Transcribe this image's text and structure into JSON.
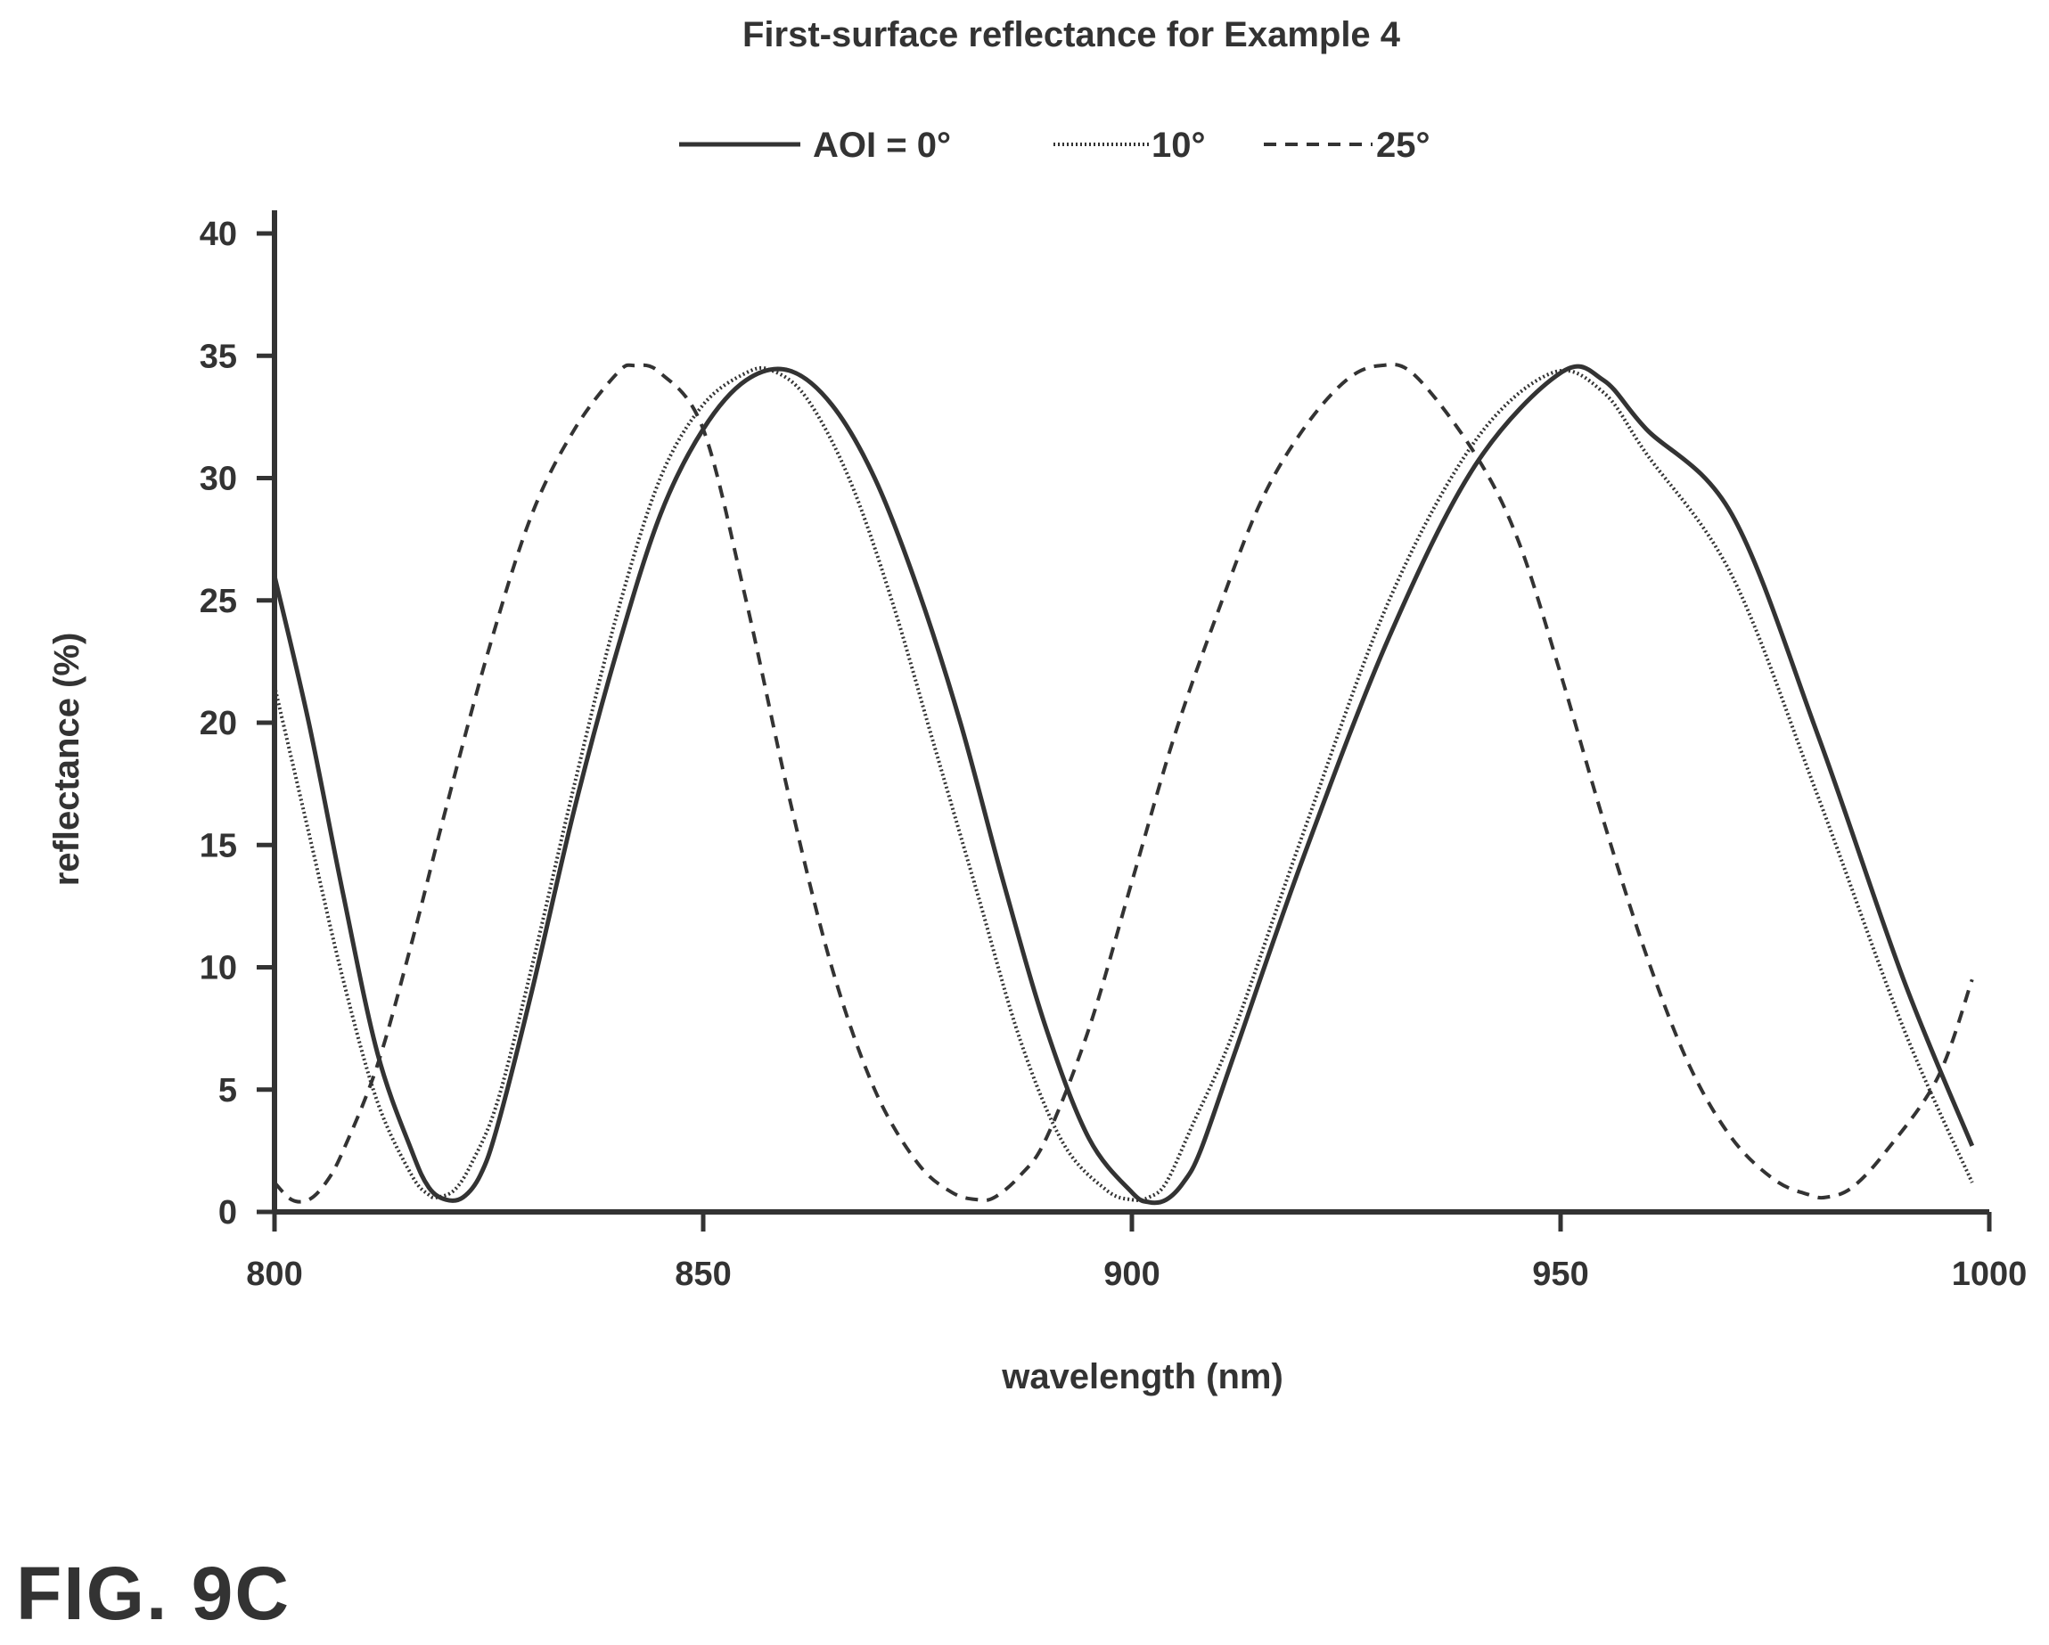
{
  "figure_label": "FIG. 9C",
  "chart_data": {
    "type": "line",
    "title": "First-surface reflectance for Example 4",
    "xlabel": "wavelength (nm)",
    "ylabel": "reflectance (%)",
    "xlim": [
      800,
      1000
    ],
    "ylim": [
      0,
      40
    ],
    "xticks": [
      800,
      850,
      900,
      950,
      1000
    ],
    "yticks": [
      0,
      5,
      10,
      15,
      20,
      25,
      30,
      35,
      40
    ],
    "grid": false,
    "legend": {
      "placement": "top"
    },
    "series": [
      {
        "name": "AOI = 0°",
        "style": "solid",
        "color": "#333333",
        "x": [
          800,
          804,
          808,
          812,
          816,
          818,
          820,
          822,
          824,
          826,
          830,
          835,
          840,
          845,
          850,
          855,
          860,
          865,
          870,
          875,
          880,
          885,
          890,
          895,
          900,
          902,
          904,
          906,
          908,
          912,
          920,
          930,
          940,
          950,
          955,
          960,
          970,
          980,
          990,
          998
        ],
        "y": [
          26,
          20,
          13,
          6.5,
          2.5,
          1.0,
          0.5,
          0.6,
          1.5,
          3.5,
          9,
          16.5,
          23,
          28.5,
          32,
          34,
          34.4,
          33,
          30,
          25.5,
          20,
          13.5,
          7.5,
          3,
          0.8,
          0.4,
          0.5,
          1.2,
          2.5,
          6.5,
          14.5,
          23.5,
          30.5,
          34.3,
          34,
          32,
          28.5,
          19.5,
          9.5,
          2.7
        ]
      },
      {
        "name": "10°",
        "style": "dotted",
        "color": "#333333",
        "x": [
          800,
          804,
          808,
          812,
          816,
          818,
          819,
          821,
          823,
          826,
          830,
          835,
          840,
          845,
          850,
          855,
          858,
          862,
          867,
          872,
          877,
          882,
          887,
          892,
          897,
          900,
          902,
          904,
          907,
          912,
          920,
          930,
          940,
          949,
          955,
          960,
          970,
          980,
          990,
          998
        ],
        "y": [
          21.5,
          15.5,
          9.5,
          4.5,
          1.5,
          0.7,
          0.6,
          0.9,
          2.0,
          4.5,
          10,
          17.5,
          24.5,
          30,
          33,
          34.3,
          34.4,
          33.3,
          30,
          25,
          19,
          13,
          7,
          2.8,
          0.9,
          0.5,
          0.6,
          1.2,
          3.5,
          7.5,
          15.5,
          25,
          31.5,
          34.3,
          33.5,
          31,
          26,
          17,
          7.5,
          1.2
        ]
      },
      {
        "name": "25°",
        "style": "dashed",
        "color": "#333333",
        "x": [
          800,
          802,
          804,
          806,
          808,
          812,
          816,
          820,
          825,
          830,
          835,
          840,
          842,
          845,
          850,
          855,
          860,
          865,
          870,
          875,
          879,
          882,
          884,
          887,
          890,
          895,
          900,
          905,
          910,
          915,
          920,
          925,
          929,
          933,
          940,
          945,
          950,
          955,
          960,
          965,
          970,
          975,
          979,
          981,
          984,
          988,
          994,
          998
        ],
        "y": [
          1.2,
          0.5,
          0.5,
          1.2,
          2.5,
          6,
          11,
          16.5,
          23,
          28.5,
          32,
          34.3,
          34.6,
          34.3,
          32,
          25,
          17,
          10,
          5,
          2,
          0.8,
          0.5,
          0.6,
          1.5,
          3,
          7.5,
          13.5,
          19.5,
          24.5,
          29,
          32,
          34,
          34.6,
          34.2,
          31,
          27.5,
          22,
          16,
          10.5,
          6,
          3,
          1.3,
          0.7,
          0.6,
          1.0,
          2.5,
          5.5,
          9.5
        ]
      }
    ]
  }
}
